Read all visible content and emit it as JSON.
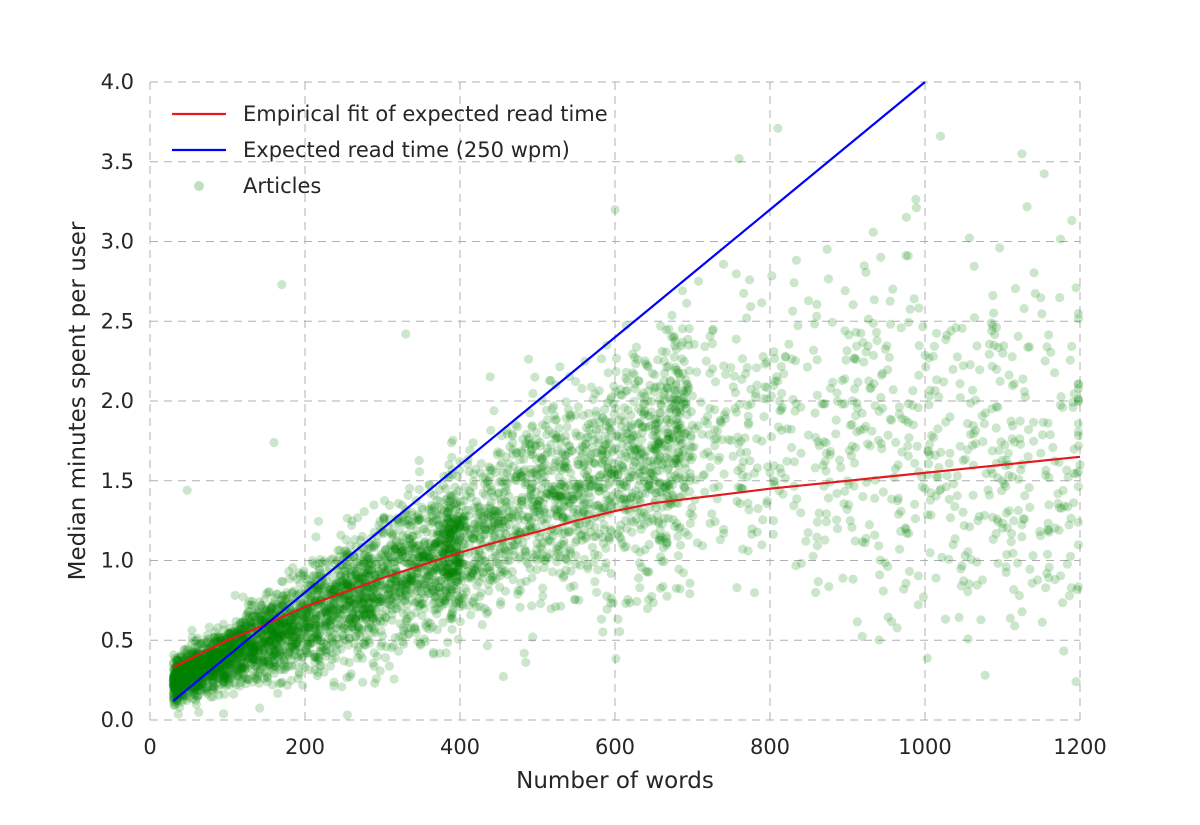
{
  "chart_data": {
    "type": "scatter",
    "title": "",
    "xlabel": "Number of words",
    "ylabel": "Median minutes spent per user",
    "xlim": [
      0,
      1200
    ],
    "ylim": [
      0.0,
      4.0
    ],
    "x_ticks": [
      "0",
      "200",
      "400",
      "600",
      "800",
      "1000",
      "1200"
    ],
    "y_ticks": [
      "0.0",
      "0.5",
      "1.0",
      "1.5",
      "2.0",
      "2.5",
      "3.0",
      "3.5",
      "4.0"
    ],
    "grid": true,
    "legend_position": "top-left",
    "series": [
      {
        "name": "Empirical fit of expected read time",
        "kind": "line",
        "color": "#e41a1c",
        "x": [
          30,
          100,
          150,
          200,
          250,
          300,
          350,
          400,
          450,
          500,
          550,
          600,
          650,
          700,
          800,
          900,
          1000,
          1100,
          1200
        ],
        "y": [
          0.33,
          0.5,
          0.6,
          0.71,
          0.8,
          0.89,
          0.97,
          1.05,
          1.12,
          1.18,
          1.25,
          1.31,
          1.36,
          1.39,
          1.45,
          1.5,
          1.55,
          1.6,
          1.65
        ]
      },
      {
        "name": "Expected read time (250 wpm)",
        "kind": "line",
        "color": "#0000ff",
        "x": [
          30,
          1000
        ],
        "y": [
          0.12,
          4.0
        ]
      },
      {
        "name": "Articles",
        "kind": "scatter",
        "color": "#008000",
        "opacity": 0.2,
        "sampled_points": [
          [
            50,
            0.3
          ],
          [
            80,
            0.4
          ],
          [
            100,
            0.45
          ],
          [
            120,
            0.55
          ],
          [
            150,
            0.6
          ],
          [
            180,
            0.7
          ],
          [
            200,
            0.75
          ],
          [
            250,
            0.85
          ],
          [
            300,
            0.95
          ],
          [
            350,
            1.05
          ],
          [
            400,
            1.15
          ],
          [
            450,
            1.25
          ],
          [
            500,
            1.35
          ],
          [
            550,
            1.45
          ],
          [
            600,
            1.55
          ],
          [
            650,
            1.6
          ],
          [
            700,
            1.65
          ],
          [
            800,
            1.55
          ],
          [
            900,
            1.5
          ],
          [
            1000,
            1.45
          ],
          [
            1100,
            1.5
          ],
          [
            1200,
            1.6
          ],
          [
            170,
            2.73
          ],
          [
            810,
            3.71
          ],
          [
            1020,
            3.66
          ],
          [
            1125,
            3.55
          ],
          [
            760,
            3.52
          ],
          [
            600,
            3.2
          ],
          [
            330,
            2.42
          ],
          [
            160,
            1.74
          ],
          [
            48,
            1.44
          ],
          [
            95,
            0.04
          ],
          [
            1195,
            0.24
          ],
          [
            1195,
            2.71
          ]
        ]
      }
    ]
  }
}
